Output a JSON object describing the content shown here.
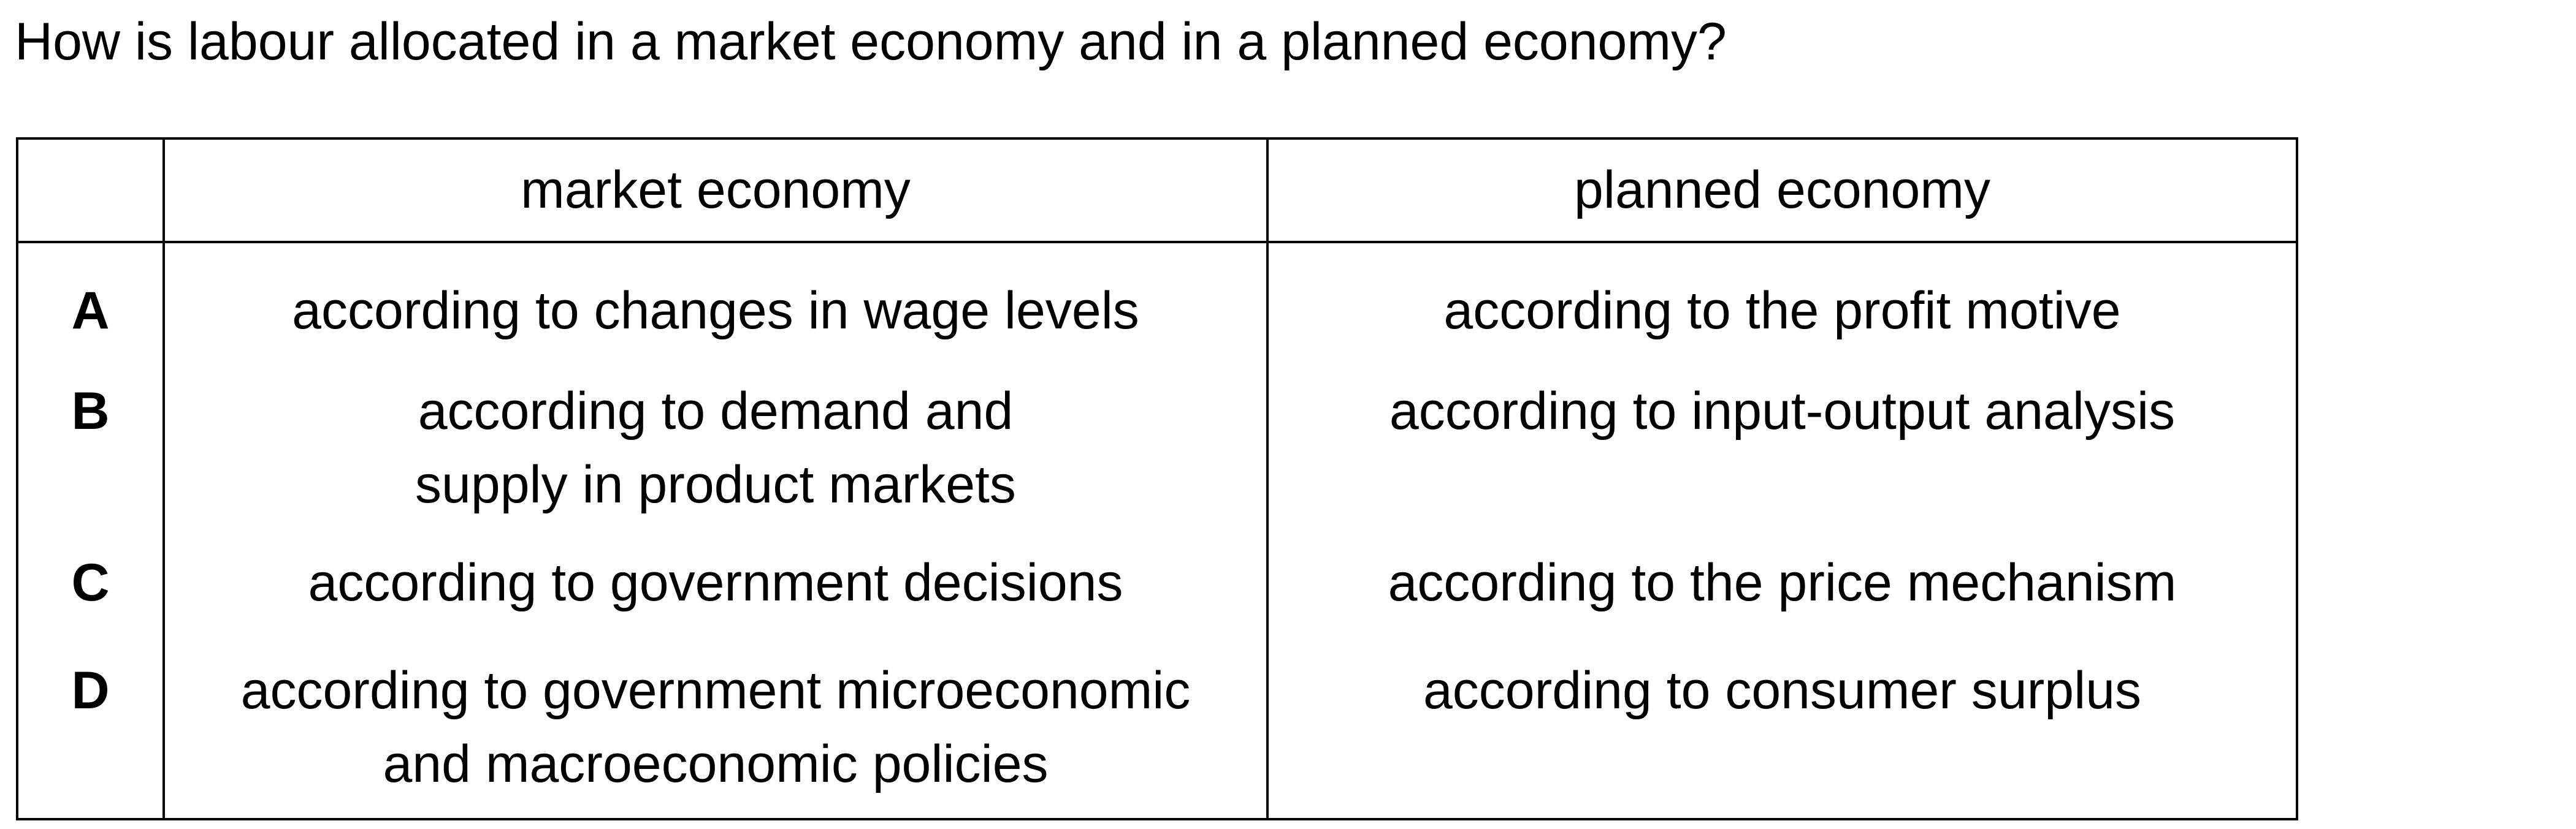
{
  "question": "How is labour allocated in a market economy and in a planned economy?",
  "table": {
    "headers": [
      "",
      "market economy",
      "planned economy"
    ],
    "rows": [
      {
        "letter": "A",
        "market": [
          "according to changes in wage levels"
        ],
        "planned": "according to the profit motive"
      },
      {
        "letter": "B",
        "market": [
          "according to demand and",
          "supply in product markets"
        ],
        "planned": "according to input-output analysis"
      },
      {
        "letter": "C",
        "market": [
          "according to government decisions"
        ],
        "planned": "according to the price mechanism"
      },
      {
        "letter": "D",
        "market": [
          "according to government microeconomic",
          "and macroeconomic policies"
        ],
        "planned": "according to consumer surplus"
      }
    ]
  }
}
